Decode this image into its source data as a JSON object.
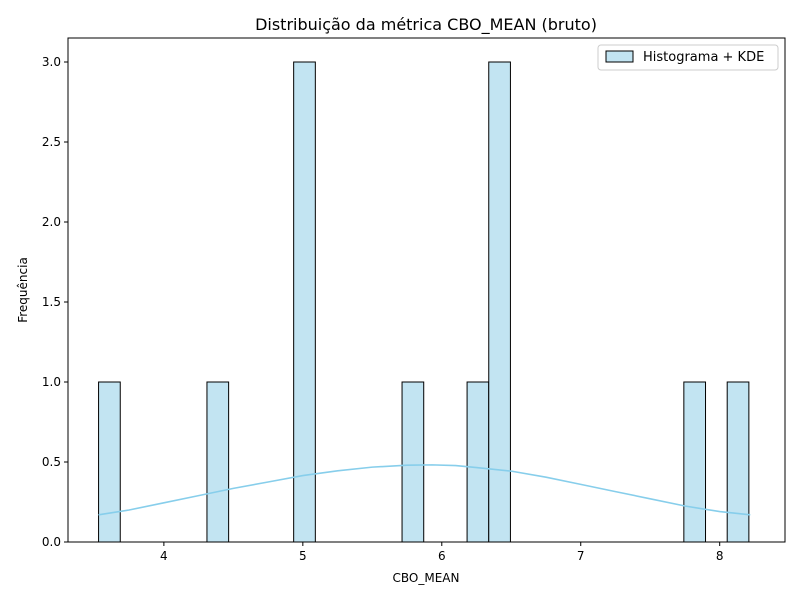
{
  "chart_data": {
    "type": "bar",
    "title": "Distribuição da métrica CBO_MEAN (bruto)",
    "xlabel": "CBO_MEAN",
    "ylabel": "Frequência",
    "xlim": [
      3.31,
      8.47
    ],
    "ylim": [
      0,
      3.15
    ],
    "x_ticks": [
      4,
      5,
      6,
      7,
      8
    ],
    "x_tick_labels": [
      "4",
      "5",
      "6",
      "7",
      "8"
    ],
    "y_ticks": [
      0.0,
      0.5,
      1.0,
      1.5,
      2.0,
      2.5,
      3.0
    ],
    "y_tick_labels": [
      "0.0",
      "0.5",
      "1.0",
      "1.5",
      "2.0",
      "2.5",
      "3.0"
    ],
    "grid": false,
    "legend": {
      "label": "Histograma + KDE",
      "placement": "top-right"
    },
    "bin_width": 0.156,
    "bins": [
      {
        "x0": 3.53,
        "x1": 3.686,
        "count": 1
      },
      {
        "x0": 4.31,
        "x1": 4.466,
        "count": 1
      },
      {
        "x0": 4.934,
        "x1": 5.09,
        "count": 3
      },
      {
        "x0": 5.714,
        "x1": 5.87,
        "count": 1
      },
      {
        "x0": 6.182,
        "x1": 6.338,
        "count": 1
      },
      {
        "x0": 6.338,
        "x1": 6.494,
        "count": 3
      },
      {
        "x0": 7.742,
        "x1": 7.898,
        "count": 1
      },
      {
        "x0": 8.054,
        "x1": 8.21,
        "count": 1
      }
    ],
    "kde": {
      "x": [
        3.53,
        3.75,
        4.0,
        4.25,
        4.5,
        4.75,
        5.0,
        5.25,
        5.5,
        5.75,
        5.93,
        6.1,
        6.25,
        6.5,
        6.75,
        7.0,
        7.25,
        7.5,
        7.75,
        8.0,
        8.22
      ],
      "y": [
        0.17,
        0.2,
        0.245,
        0.29,
        0.335,
        0.375,
        0.415,
        0.445,
        0.468,
        0.48,
        0.482,
        0.478,
        0.465,
        0.443,
        0.405,
        0.36,
        0.315,
        0.27,
        0.225,
        0.19,
        0.17
      ]
    },
    "colors": {
      "bar_fill": "#c2e4f2",
      "bar_edge": "#000000",
      "kde_line": "#87ceeb"
    }
  }
}
